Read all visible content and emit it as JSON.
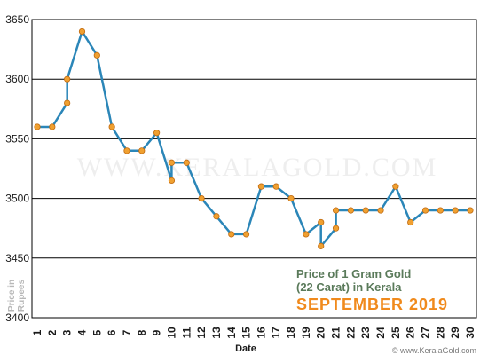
{
  "chart_data": {
    "type": "line",
    "title_line1": "Price of 1 Gram Gold",
    "title_line2": "(22 Carat) in Kerala",
    "title_month": "SEPTEMBER 2019",
    "xlabel": "Date",
    "ylabel_line1": "Price in",
    "ylabel_line2": "Rupees",
    "watermark": "WWW.KERALAGOLD.COM",
    "credit": "© www.KeralaGold.com",
    "x_ticks": [
      "1",
      "2",
      "3",
      "4",
      "5",
      "6",
      "7",
      "8",
      "9",
      "10",
      "11",
      "12",
      "13",
      "14",
      "15",
      "16",
      "17",
      "18",
      "19",
      "20",
      "21",
      "22",
      "23",
      "24",
      "25",
      "26",
      "27",
      "28",
      "29",
      "30"
    ],
    "y_ticks": [
      "3400",
      "3450",
      "3500",
      "3550",
      "3600",
      "3650"
    ],
    "ylim": [
      3400,
      3650
    ],
    "xlim": [
      1,
      30
    ],
    "grid": true,
    "colors": {
      "line": "#2b86b8",
      "marker": "#f0a030",
      "marker_stroke": "#c06a10",
      "grid": "#000000"
    },
    "points": [
      {
        "x": 1,
        "y": 3560
      },
      {
        "x": 2,
        "y": 3560
      },
      {
        "x": 3,
        "y": 3580
      },
      {
        "x": 3,
        "y": 3600
      },
      {
        "x": 4,
        "y": 3640
      },
      {
        "x": 5,
        "y": 3620
      },
      {
        "x": 6,
        "y": 3560
      },
      {
        "x": 7,
        "y": 3540
      },
      {
        "x": 8,
        "y": 3540
      },
      {
        "x": 9,
        "y": 3555
      },
      {
        "x": 10,
        "y": 3515
      },
      {
        "x": 10,
        "y": 3530
      },
      {
        "x": 11,
        "y": 3530
      },
      {
        "x": 12,
        "y": 3500
      },
      {
        "x": 13,
        "y": 3485
      },
      {
        "x": 14,
        "y": 3470
      },
      {
        "x": 15,
        "y": 3470
      },
      {
        "x": 16,
        "y": 3510
      },
      {
        "x": 17,
        "y": 3510
      },
      {
        "x": 18,
        "y": 3500
      },
      {
        "x": 19,
        "y": 3470
      },
      {
        "x": 20,
        "y": 3480
      },
      {
        "x": 20,
        "y": 3460
      },
      {
        "x": 21,
        "y": 3475
      },
      {
        "x": 21,
        "y": 3490
      },
      {
        "x": 22,
        "y": 3490
      },
      {
        "x": 23,
        "y": 3490
      },
      {
        "x": 24,
        "y": 3490
      },
      {
        "x": 25,
        "y": 3510
      },
      {
        "x": 26,
        "y": 3480
      },
      {
        "x": 27,
        "y": 3490
      },
      {
        "x": 28,
        "y": 3490
      },
      {
        "x": 29,
        "y": 3490
      },
      {
        "x": 30,
        "y": 3490
      }
    ]
  }
}
